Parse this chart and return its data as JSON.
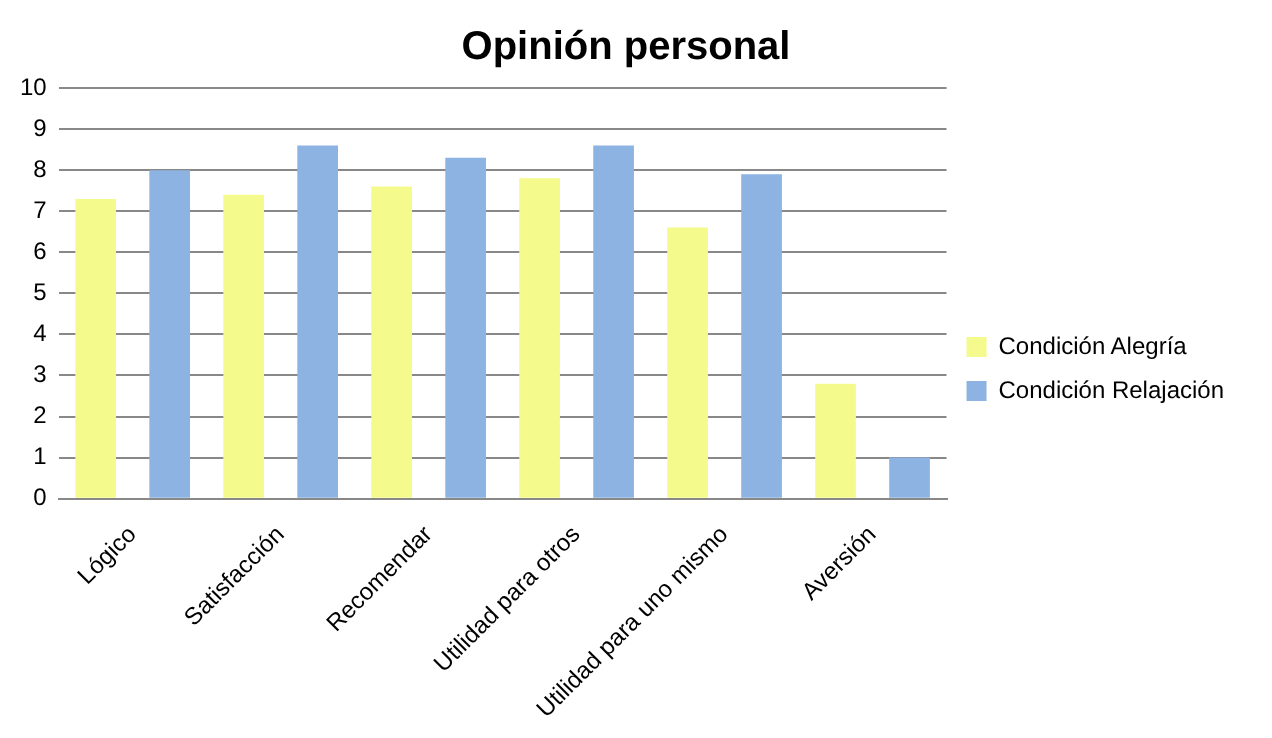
{
  "chart_data": {
    "type": "bar",
    "title": "Opinión personal",
    "categories": [
      "Lógico",
      "Satisfacción",
      "Recomendar",
      "Utilidad para otros",
      "Utilidad para uno mismo",
      "Aversión"
    ],
    "series": [
      {
        "name": "Condición Alegría",
        "color": "#f5fa8c",
        "values": [
          7.3,
          7.4,
          7.6,
          7.8,
          6.6,
          2.8
        ]
      },
      {
        "name": "Condición Relajación",
        "color": "#8db3e2",
        "values": [
          8.0,
          8.6,
          8.3,
          8.6,
          7.9,
          1.0
        ]
      }
    ],
    "ylim": [
      0,
      10
    ],
    "yticks": [
      0,
      1,
      2,
      3,
      4,
      5,
      6,
      7,
      8,
      9,
      10
    ],
    "grid": "y",
    "legend": "right"
  }
}
